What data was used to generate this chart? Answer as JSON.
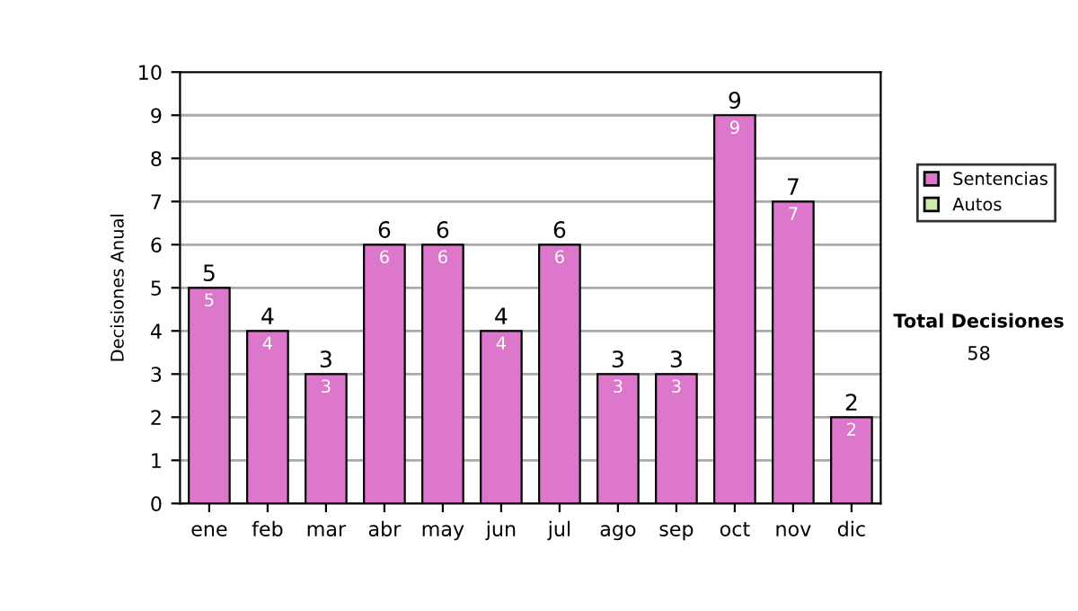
{
  "chart_data": {
    "type": "bar",
    "stacked": true,
    "ylabel": "Decisiones Anual",
    "categories": [
      "ene",
      "feb",
      "mar",
      "abr",
      "may",
      "jun",
      "jul",
      "ago",
      "sep",
      "oct",
      "nov",
      "dic"
    ],
    "series": [
      {
        "name": "Sentencias",
        "color": "#dd77cc",
        "values": [
          5,
          4,
          3,
          6,
          6,
          4,
          6,
          3,
          3,
          9,
          7,
          2
        ],
        "value_labels": [
          "5",
          "4",
          "3",
          "6",
          "6",
          "4",
          "6",
          "3",
          "3",
          "9",
          "7",
          "2"
        ]
      },
      {
        "name": "Autos",
        "color": "#cceeaa",
        "values": [
          0,
          0,
          0,
          0,
          0,
          0,
          0,
          0,
          0,
          0,
          0,
          0
        ],
        "value_labels": [
          null,
          null,
          null,
          null,
          null,
          null,
          null,
          null,
          null,
          null,
          null,
          null
        ]
      }
    ],
    "totals": [
      "5",
      "4",
      "3",
      "6",
      "6",
      "4",
      "6",
      "3",
      "3",
      "9",
      "7",
      "2"
    ],
    "ylim": [
      0,
      10
    ],
    "yticks": [
      0,
      1,
      2,
      3,
      4,
      5,
      6,
      7,
      8,
      9,
      10
    ],
    "grid": "y",
    "legend": "right",
    "annotations": [
      "Total Decisiones",
      "58"
    ]
  }
}
